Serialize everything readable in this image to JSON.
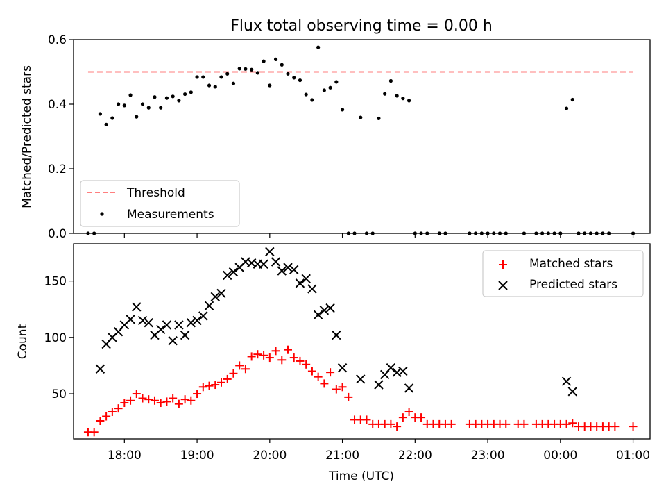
{
  "chart_data": [
    {
      "type": "scatter",
      "title": "Flux total observing time = 0.00 h",
      "xlabel": "",
      "ylabel": "Matched/Predicted stars",
      "xlim": [
        "17:18",
        "01:14"
      ],
      "ylim": [
        0,
        0.6
      ],
      "yticks": [
        "0.0",
        "0.2",
        "0.4",
        "0.6"
      ],
      "xticks": [
        "18:00",
        "19:00",
        "20:00",
        "21:00",
        "22:00",
        "23:00",
        "00:00",
        "01:00"
      ],
      "xtick_labels_shown": false,
      "legend_position": "lower-left",
      "threshold": {
        "name": "Threshold",
        "value": 0.5,
        "x_start": "17:30",
        "x_end": "01:00",
        "color": "#ff7f7f",
        "style": "dashed"
      },
      "series": [
        {
          "name": "Measurements",
          "color": "#000000",
          "marker": "dot",
          "points": [
            [
              "17:30",
              0.0
            ],
            [
              "17:35",
              0.0
            ],
            [
              "17:40",
              0.37
            ],
            [
              "17:45",
              0.337
            ],
            [
              "17:50",
              0.357
            ],
            [
              "17:55",
              0.4
            ],
            [
              "18:00",
              0.396
            ],
            [
              "18:05",
              0.428
            ],
            [
              "18:10",
              0.361
            ],
            [
              "18:15",
              0.4
            ],
            [
              "18:20",
              0.389
            ],
            [
              "18:25",
              0.422
            ],
            [
              "18:30",
              0.389
            ],
            [
              "18:35",
              0.419
            ],
            [
              "18:40",
              0.424
            ],
            [
              "18:45",
              0.411
            ],
            [
              "18:50",
              0.431
            ],
            [
              "18:55",
              0.437
            ],
            [
              "19:00",
              0.484
            ],
            [
              "19:05",
              0.484
            ],
            [
              "19:10",
              0.458
            ],
            [
              "19:15",
              0.454
            ],
            [
              "19:20",
              0.484
            ],
            [
              "19:25",
              0.494
            ],
            [
              "19:30",
              0.464
            ],
            [
              "19:35",
              0.51
            ],
            [
              "19:40",
              0.509
            ],
            [
              "19:45",
              0.507
            ],
            [
              "19:50",
              0.497
            ],
            [
              "19:55",
              0.533
            ],
            [
              "20:00",
              0.458
            ],
            [
              "20:05",
              0.539
            ],
            [
              "20:10",
              0.522
            ],
            [
              "20:15",
              0.494
            ],
            [
              "20:20",
              0.482
            ],
            [
              "20:25",
              0.474
            ],
            [
              "20:30",
              0.43
            ],
            [
              "20:35",
              0.413
            ],
            [
              "20:40",
              0.576
            ],
            [
              "20:45",
              0.443
            ],
            [
              "20:50",
              0.451
            ],
            [
              "20:55",
              0.469
            ],
            [
              "21:00",
              0.383
            ],
            [
              "21:05",
              0.0
            ],
            [
              "21:10",
              0.0
            ],
            [
              "21:15",
              0.359
            ],
            [
              "21:20",
              0.0
            ],
            [
              "21:25",
              0.0
            ],
            [
              "21:30",
              0.356
            ],
            [
              "21:35",
              0.432
            ],
            [
              "21:40",
              0.472
            ],
            [
              "21:45",
              0.426
            ],
            [
              "21:50",
              0.418
            ],
            [
              "21:55",
              0.411
            ],
            [
              "22:00",
              0.0
            ],
            [
              "22:05",
              0.0
            ],
            [
              "22:10",
              0.0
            ],
            [
              "22:20",
              0.0
            ],
            [
              "22:25",
              0.0
            ],
            [
              "22:45",
              0.0
            ],
            [
              "22:50",
              0.0
            ],
            [
              "22:55",
              0.0
            ],
            [
              "23:00",
              0.0
            ],
            [
              "23:05",
              0.0
            ],
            [
              "23:10",
              0.0
            ],
            [
              "23:15",
              0.0
            ],
            [
              "23:30",
              0.0
            ],
            [
              "23:40",
              0.0
            ],
            [
              "23:45",
              0.0
            ],
            [
              "23:50",
              0.0
            ],
            [
              "23:55",
              0.0
            ],
            [
              "00:00",
              0.0
            ],
            [
              "00:05",
              0.387
            ],
            [
              "00:10",
              0.414
            ],
            [
              "00:15",
              0.0
            ],
            [
              "00:20",
              0.0
            ],
            [
              "00:25",
              0.0
            ],
            [
              "00:30",
              0.0
            ],
            [
              "00:35",
              0.0
            ],
            [
              "00:40",
              0.0
            ],
            [
              "01:00",
              0.0
            ]
          ]
        }
      ]
    },
    {
      "type": "scatter",
      "title": "",
      "xlabel": "Time (UTC)",
      "ylabel": "Count",
      "xlim": [
        "17:18",
        "01:14"
      ],
      "ylim": [
        10,
        183
      ],
      "yticks": [
        "50",
        "100",
        "150"
      ],
      "xticks": [
        "18:00",
        "19:00",
        "20:00",
        "21:00",
        "22:00",
        "23:00",
        "00:00",
        "01:00"
      ],
      "legend_position": "top-right",
      "series": [
        {
          "name": "Matched stars",
          "color": "#ff0000",
          "marker": "plus",
          "points": [
            [
              "17:30",
              16
            ],
            [
              "17:35",
              16
            ],
            [
              "17:40",
              26
            ],
            [
              "17:45",
              30
            ],
            [
              "17:50",
              34
            ],
            [
              "17:55",
              37
            ],
            [
              "18:00",
              42
            ],
            [
              "18:05",
              44
            ],
            [
              "18:10",
              50
            ],
            [
              "18:15",
              46
            ],
            [
              "18:20",
              45
            ],
            [
              "18:25",
              44
            ],
            [
              "18:30",
              42
            ],
            [
              "18:35",
              43
            ],
            [
              "18:40",
              46
            ],
            [
              "18:45",
              41
            ],
            [
              "18:50",
              45
            ],
            [
              "18:55",
              44
            ],
            [
              "19:00",
              50
            ],
            [
              "19:05",
              56
            ],
            [
              "19:10",
              57
            ],
            [
              "19:15",
              58
            ],
            [
              "19:20",
              60
            ],
            [
              "19:25",
              63
            ],
            [
              "19:30",
              68
            ],
            [
              "19:35",
              75
            ],
            [
              "19:40",
              72
            ],
            [
              "19:45",
              83
            ],
            [
              "19:50",
              85
            ],
            [
              "19:55",
              84
            ],
            [
              "20:00",
              82
            ],
            [
              "20:05",
              88
            ],
            [
              "20:10",
              80
            ],
            [
              "20:15",
              89
            ],
            [
              "20:20",
              82
            ],
            [
              "20:25",
              79
            ],
            [
              "20:30",
              76
            ],
            [
              "20:35",
              70
            ],
            [
              "20:40",
              65
            ],
            [
              "20:45",
              59
            ],
            [
              "20:50",
              69
            ],
            [
              "20:55",
              54
            ],
            [
              "21:00",
              56
            ],
            [
              "21:05",
              47
            ],
            [
              "21:10",
              27
            ],
            [
              "21:15",
              27
            ],
            [
              "21:20",
              27
            ],
            [
              "21:25",
              23
            ],
            [
              "21:30",
              23
            ],
            [
              "21:35",
              23
            ],
            [
              "21:40",
              23
            ],
            [
              "21:45",
              21
            ],
            [
              "21:50",
              29
            ],
            [
              "21:55",
              34
            ],
            [
              "22:00",
              29
            ],
            [
              "22:05",
              29
            ],
            [
              "22:10",
              23
            ],
            [
              "22:15",
              23
            ],
            [
              "22:20",
              23
            ],
            [
              "22:25",
              23
            ],
            [
              "22:30",
              23
            ],
            [
              "22:45",
              23
            ],
            [
              "22:50",
              23
            ],
            [
              "22:55",
              23
            ],
            [
              "23:00",
              23
            ],
            [
              "23:05",
              23
            ],
            [
              "23:10",
              23
            ],
            [
              "23:15",
              23
            ],
            [
              "23:25",
              23
            ],
            [
              "23:30",
              23
            ],
            [
              "23:40",
              23
            ],
            [
              "23:45",
              23
            ],
            [
              "23:50",
              23
            ],
            [
              "23:55",
              23
            ],
            [
              "00:00",
              23
            ],
            [
              "00:05",
              23
            ],
            [
              "00:10",
              24
            ],
            [
              "00:15",
              21
            ],
            [
              "00:20",
              21
            ],
            [
              "00:25",
              21
            ],
            [
              "00:30",
              21
            ],
            [
              "00:35",
              21
            ],
            [
              "00:40",
              21
            ],
            [
              "00:45",
              21
            ],
            [
              "01:00",
              21
            ]
          ]
        },
        {
          "name": "Predicted stars",
          "color": "#000000",
          "marker": "x",
          "points": [
            [
              "17:40",
              72
            ],
            [
              "17:45",
              94
            ],
            [
              "17:50",
              100
            ],
            [
              "17:55",
              105
            ],
            [
              "18:00",
              111
            ],
            [
              "18:05",
              116
            ],
            [
              "18:10",
              127
            ],
            [
              "18:15",
              115
            ],
            [
              "18:20",
              113
            ],
            [
              "18:25",
              102
            ],
            [
              "18:30",
              107
            ],
            [
              "18:35",
              111
            ],
            [
              "18:40",
              97
            ],
            [
              "18:45",
              111
            ],
            [
              "18:50",
              102
            ],
            [
              "18:55",
              113
            ],
            [
              "19:00",
              115
            ],
            [
              "19:05",
              119
            ],
            [
              "19:10",
              128
            ],
            [
              "19:15",
              136
            ],
            [
              "19:20",
              139
            ],
            [
              "19:25",
              155
            ],
            [
              "19:30",
              158
            ],
            [
              "19:35",
              162
            ],
            [
              "19:40",
              167
            ],
            [
              "19:45",
              166
            ],
            [
              "19:50",
              165
            ],
            [
              "19:55",
              165
            ],
            [
              "20:00",
              176
            ],
            [
              "20:05",
              167
            ],
            [
              "20:10",
              159
            ],
            [
              "20:15",
              162
            ],
            [
              "20:20",
              160
            ],
            [
              "20:25",
              148
            ],
            [
              "20:30",
              152
            ],
            [
              "20:35",
              143
            ],
            [
              "20:40",
              120
            ],
            [
              "20:45",
              124
            ],
            [
              "20:50",
              126
            ],
            [
              "20:55",
              102
            ],
            [
              "21:00",
              73
            ],
            [
              "21:15",
              63
            ],
            [
              "21:30",
              58
            ],
            [
              "21:35",
              67
            ],
            [
              "21:40",
              73
            ],
            [
              "21:45",
              69
            ],
            [
              "21:50",
              70
            ],
            [
              "21:55",
              55
            ],
            [
              "00:05",
              61
            ],
            [
              "00:10",
              52
            ]
          ]
        }
      ]
    }
  ]
}
